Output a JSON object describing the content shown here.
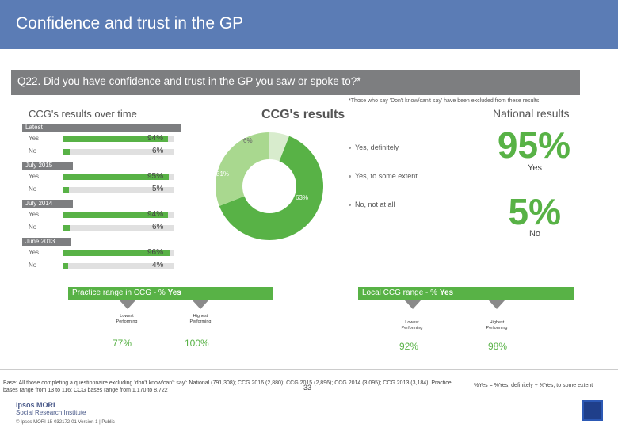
{
  "header": {
    "title": "Confidence and trust in the GP"
  },
  "question": {
    "prefix": "Q22. Did you have confidence and trust in the ",
    "underlined": "GP",
    "suffix": " you saw or spoke to?*"
  },
  "footnote_top": "*Those who say 'Don't know/can't say' have been excluded from these results.",
  "left_title": "CCG's results over time",
  "donut_title": "CCG's results",
  "national_title": "National results",
  "periods": [
    {
      "label": "Latest",
      "rows": [
        {
          "name": "Yes",
          "pct": "94%",
          "value": 94
        },
        {
          "name": "No",
          "pct": "6%",
          "value": 6
        }
      ]
    },
    {
      "label": "July 2015",
      "rows": [
        {
          "name": "Yes",
          "pct": "95%",
          "value": 95
        },
        {
          "name": "No",
          "pct": "5%",
          "value": 5
        }
      ]
    },
    {
      "label": "July 2014",
      "rows": [
        {
          "name": "Yes",
          "pct": "94%",
          "value": 94
        },
        {
          "name": "No",
          "pct": "6%",
          "value": 6
        }
      ]
    },
    {
      "label": "June 2013",
      "rows": [
        {
          "name": "Yes",
          "pct": "96%",
          "value": 96
        },
        {
          "name": "No",
          "pct": "4%",
          "value": 4
        }
      ]
    }
  ],
  "chart_data": [
    {
      "type": "bar",
      "title": "CCG's results over time",
      "categories": [
        "Latest",
        "July 2015",
        "July 2014",
        "June 2013"
      ],
      "series": [
        {
          "name": "Yes",
          "values": [
            94,
            95,
            94,
            96
          ]
        },
        {
          "name": "No",
          "values": [
            6,
            5,
            6,
            4
          ]
        }
      ],
      "ylim": [
        0,
        100
      ]
    },
    {
      "type": "pie",
      "title": "CCG's results",
      "categories": [
        "Yes, definitely",
        "Yes, to some extent",
        "No, not at all"
      ],
      "values": [
        63,
        31,
        6
      ],
      "labels": [
        "63%",
        "31%",
        "6%"
      ],
      "colors": [
        "#58b246",
        "#a9d88f",
        "#d8eccd"
      ]
    }
  ],
  "legend": [
    "Yes, definitely",
    "Yes, to some extent",
    "No, not at all"
  ],
  "national": {
    "yes_pct": "95%",
    "yes_label": "Yes",
    "no_pct": "5%",
    "no_label": "No"
  },
  "practice_range": {
    "title_prefix": "Practice range in CCG - % ",
    "title_bold": "Yes",
    "lowest_label_1": "Lowest",
    "lowest_label_2": "Performing",
    "highest_label_1": "Highest",
    "highest_label_2": "Performing",
    "lowest_value": "77%",
    "highest_value": "100%"
  },
  "ccg_range": {
    "title_prefix": "Local CCG range - % ",
    "title_bold": "Yes",
    "lowest_label_1": "Lowest",
    "lowest_label_2": "Performing",
    "highest_label_1": "Highest",
    "highest_label_2": "Performing",
    "lowest_value": "92%",
    "highest_value": "98%"
  },
  "base_note": "Base: All those completing a questionnaire excluding 'don't know/can't say': National (791,308); CCG 2016 (2,880); CCG 2015 (2,896); CCG 2014 (3,095); CCG 2013 (3,184); Practice bases range from 13 to 116; CCG bases range from 1,170 to 8,722",
  "yes_note": "%Yes = %Yes, definitely + %Yes, to some extent",
  "page_number": "33",
  "logo_line1": "Ipsos MORI",
  "logo_line2": "Social Research Institute",
  "copyright": "© Ipsos MORI    15-032172-01 Version 1 | Public",
  "colors": {
    "header": "#5b7cb5",
    "green": "#58b246",
    "grey": "#7d7e80"
  }
}
